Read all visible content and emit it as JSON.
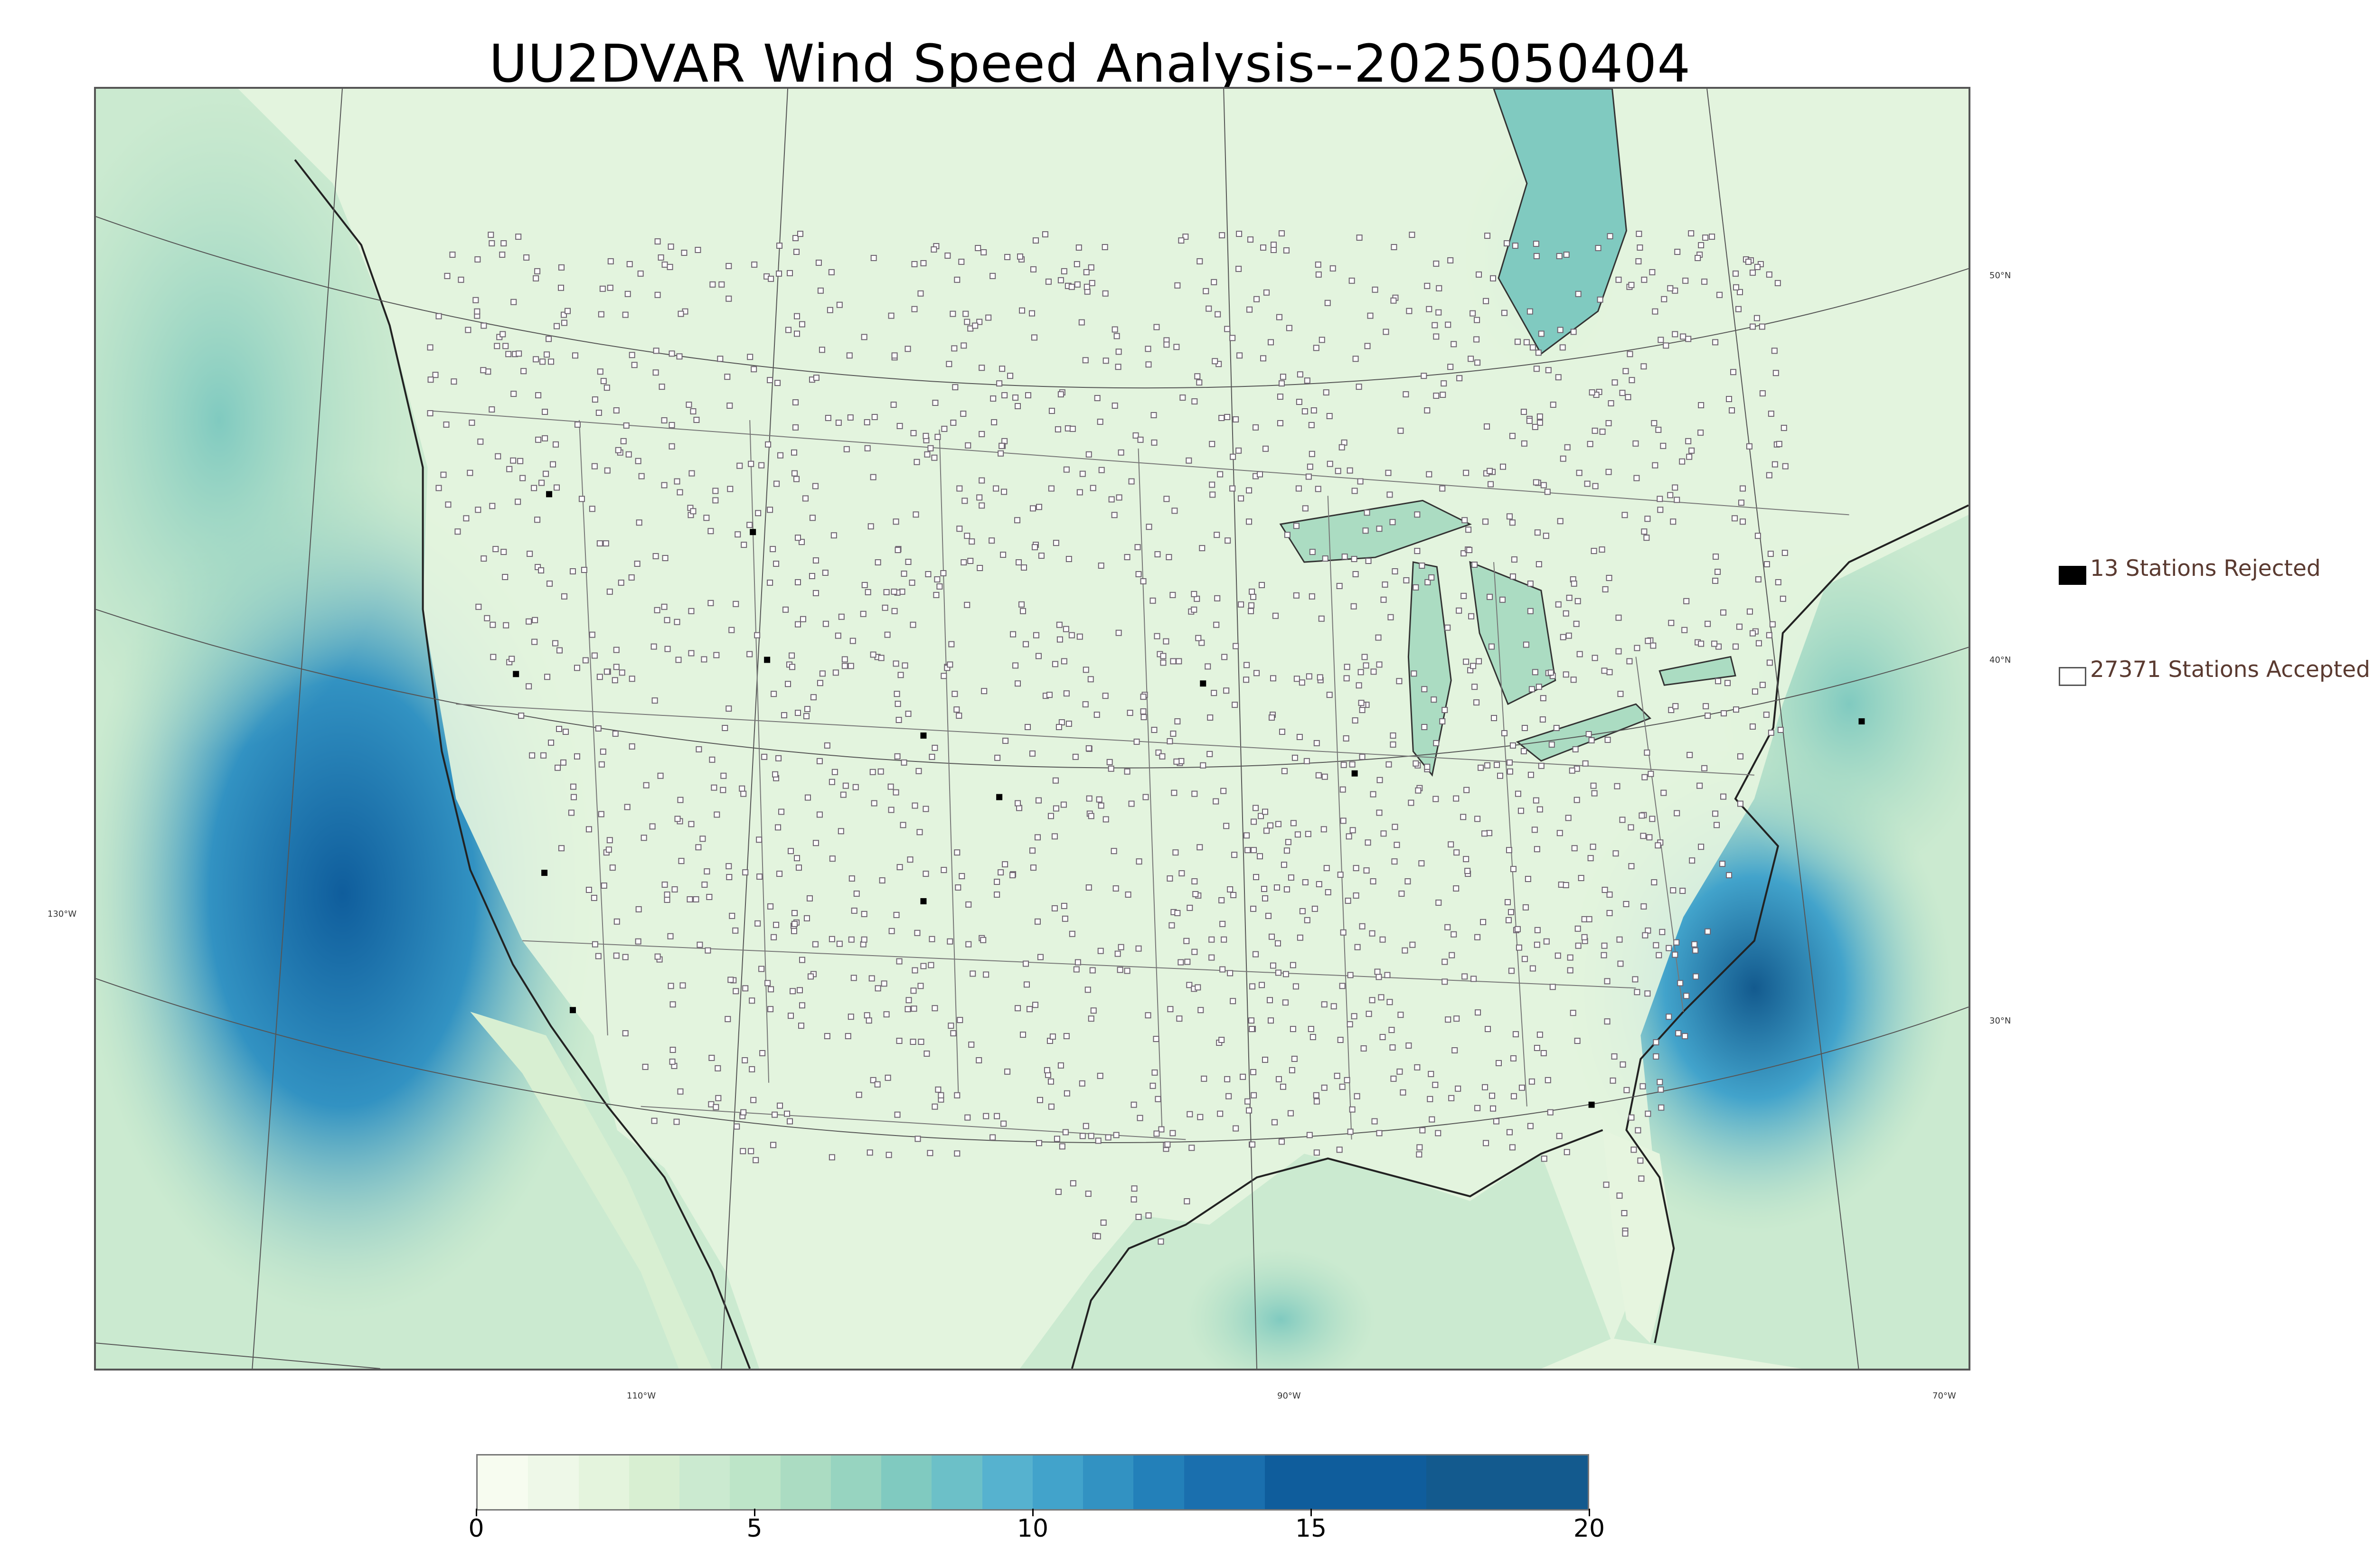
{
  "title": "UU2DVAR Wind Speed Analysis--2025050404",
  "map": {
    "lat_labels": [
      "50°N",
      "40°N",
      "30°N"
    ],
    "lon_labels": [
      "130°W",
      "110°W",
      "90°W",
      "70°W"
    ],
    "colors": {
      "land_light": "#eaf6e4",
      "land_mid": "#c8e8c2",
      "ocean_mid": "#6cbfd6",
      "ocean_dark": "#1468a8",
      "station_border": "#6e6470",
      "rejected": "#000000",
      "borders": "#666666"
    }
  },
  "legend": {
    "rejected_label": "13 Stations Rejected",
    "accepted_label": "27371 Stations Accepted"
  },
  "colorbar": {
    "min": 0,
    "max": 20,
    "ticks": [
      "0",
      "5",
      "10",
      "15",
      "20"
    ],
    "colors": [
      "#f7fcf0",
      "#eef8e8",
      "#e4f4dd",
      "#d8efd2",
      "#cbead0",
      "#bde5c8",
      "#abdcc2",
      "#97d4c0",
      "#80cac0",
      "#6cc0c8",
      "#56b2cf",
      "#42a3cb",
      "#3292c2",
      "#2380b9",
      "#1a6fae",
      "#0f5d9c",
      "#135a8e"
    ]
  }
}
